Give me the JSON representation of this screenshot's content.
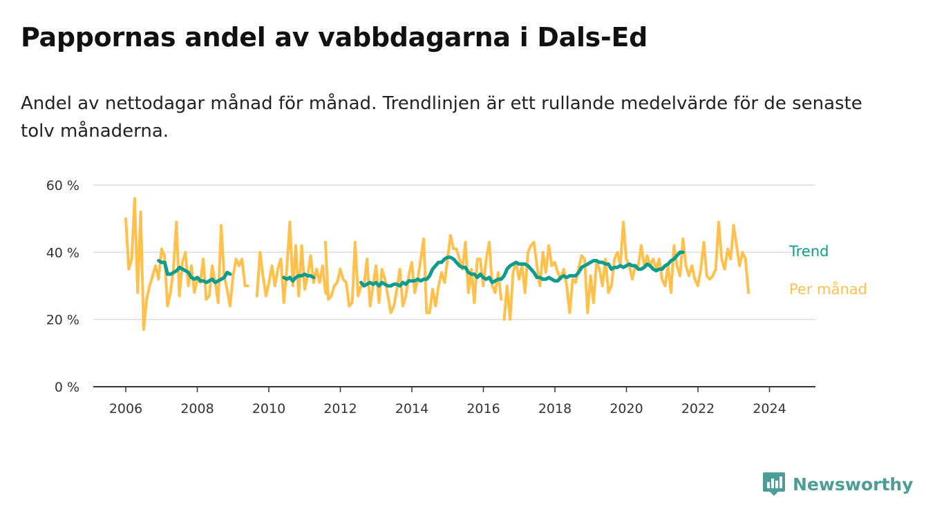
{
  "chart_data": {
    "type": "line",
    "title": "Pappornas andel av vabbdagarna i Dals-Ed",
    "subtitle": "Andel av nettodagar månad för månad. Trendlinjen är ett rullande medelvärde för de senaste tolv månaderna.",
    "ylim": [
      0,
      60
    ],
    "xlim": [
      2005.5,
      2025.2
    ],
    "yticks": [
      {
        "value": 0,
        "label": "0 %"
      },
      {
        "value": 20,
        "label": "20 %"
      },
      {
        "value": 40,
        "label": "40 %"
      },
      {
        "value": 60,
        "label": "60 %"
      }
    ],
    "xticks": [
      {
        "value": 2006,
        "label": "2006"
      },
      {
        "value": 2008,
        "label": "2008"
      },
      {
        "value": 2010,
        "label": "2010"
      },
      {
        "value": 2012,
        "label": "2012"
      },
      {
        "value": 2014,
        "label": "2014"
      },
      {
        "value": 2016,
        "label": "2016"
      },
      {
        "value": 2018,
        "label": "2018"
      },
      {
        "value": 2020,
        "label": "2020"
      },
      {
        "value": 2022,
        "label": "2022"
      },
      {
        "value": 2024,
        "label": "2024"
      }
    ],
    "grid": true,
    "legend": "inline-right",
    "series": [
      {
        "name": "Per månad",
        "color": "#ffc04c",
        "segments": [
          {
            "start": 2006.0,
            "values": [
              50,
              35,
              38,
              56,
              28,
              52,
              17,
              26,
              30,
              33,
              36,
              32,
              41,
              39,
              24,
              28,
              35,
              49,
              27,
              37,
              40,
              30,
              36,
              28,
              32,
              31,
              38,
              26,
              27,
              36,
              31,
              25,
              48,
              33,
              29,
              24,
              33,
              38,
              36,
              38,
              30,
              30
            ]
          },
          {
            "start": 2009.67,
            "values": [
              27,
              40,
              33,
              27,
              31,
              36,
              30,
              35,
              38,
              25,
              35,
              49,
              30,
              42,
              27,
              42,
              29,
              33,
              39,
              31,
              35,
              31,
              36,
              28,
              27
            ]
          },
          {
            "start": 2011.58,
            "values": [
              43,
              26,
              27,
              30,
              31,
              35,
              32,
              31,
              24,
              25,
              43,
              27,
              30,
              30,
              38,
              24,
              30,
              36,
              25,
              35,
              32,
              27,
              22,
              24,
              29,
              35,
              24,
              27,
              33,
              37,
              28,
              32,
              38,
              44,
              22,
              22,
              29,
              24,
              30,
              34,
              31,
              38,
              45,
              41,
              41,
              38,
              35,
              43,
              28,
              35,
              25,
              38,
              38,
              30,
              38,
              43,
              30,
              28,
              34,
              26
            ]
          },
          {
            "start": 2016.58,
            "values": [
              20,
              30,
              20,
              34,
              37,
              32,
              36,
              28,
              40,
              42,
              43,
              36,
              30,
              40,
              34,
              42,
              36,
              37,
              34,
              32,
              35,
              30,
              22,
              32,
              31,
              35,
              39,
              38,
              22,
              33,
              25,
              37,
              35,
              30,
              38,
              28,
              30,
              38,
              40,
              36,
              49,
              38,
              36,
              32,
              36,
              36,
              42,
              36,
              39,
              36,
              38,
              35,
              38,
              32,
              30,
              36,
              28,
              42,
              36,
              33,
              44,
              36,
              33,
              36,
              32,
              30,
              35,
              43,
              33,
              32,
              33,
              35,
              49,
              38,
              35,
              41,
              38,
              48,
              42,
              36,
              40,
              38,
              28
            ]
          }
        ]
      },
      {
        "name": "Trend",
        "color": "#0e9c8c",
        "segments": [
          {
            "start": 2006.92,
            "values": [
              37.5,
              37,
              37,
              33.5,
              33.5,
              34,
              34.5,
              35.5,
              35,
              34.5,
              34,
              32.5,
              32,
              32.5,
              31.5,
              31.5,
              31,
              31.5,
              32,
              31,
              31.5,
              32,
              32.5,
              34,
              33.5
            ]
          },
          {
            "start": 2010.42,
            "values": [
              32.5,
              32,
              32.5,
              31.5,
              32.5,
              33,
              33,
              33.5,
              33,
              33,
              32.5
            ]
          },
          {
            "start": 2012.58,
            "values": [
              31,
              30,
              30.5,
              31,
              30.5,
              31,
              30,
              31,
              30.5,
              30,
              30,
              30.5,
              30.5,
              30,
              31,
              30.5,
              31.5,
              31.5,
              31.5,
              32,
              31.5,
              32,
              32,
              33,
              35,
              36,
              37,
              37,
              38,
              38.5,
              38.5,
              38,
              37,
              36,
              35.5,
              35.5,
              34,
              33.5,
              33.5,
              32.5,
              33.5,
              32.5,
              32,
              32.5,
              31,
              31.5,
              32,
              32,
              33,
              35,
              36,
              36.5,
              37,
              36.5,
              36.5,
              36.5,
              36,
              35,
              34,
              32.5,
              32.5,
              32,
              32,
              32.5,
              32,
              31.5,
              31.5,
              32.5,
              33,
              32.5,
              33,
              33,
              33,
              34,
              35.5,
              36,
              36.5,
              37,
              37.5,
              37.5,
              37,
              37,
              36.5,
              36.5,
              35,
              35.5,
              35.5,
              36,
              35.5,
              36,
              36.5,
              36,
              36,
              35,
              35,
              35.5,
              36.5,
              36,
              35,
              34.5,
              35,
              35,
              36,
              36.5,
              37.5,
              38,
              39,
              40,
              40
            ]
          }
        ]
      }
    ]
  },
  "series_labels": {
    "trend": "Trend",
    "monthly": "Per månad"
  },
  "brand": {
    "name": "Newsworthy",
    "icon": "newsworthy-logo-icon",
    "color": "#4a9e95"
  }
}
